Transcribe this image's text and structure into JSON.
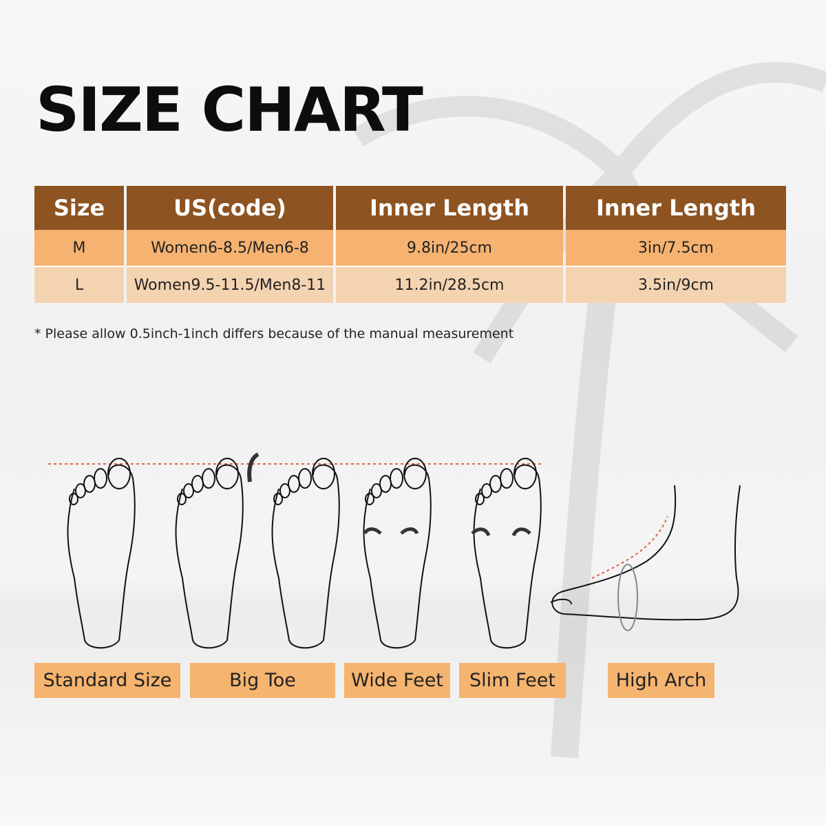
{
  "title": "SIZE CHART",
  "table": {
    "headers": [
      "Size",
      "US(code)",
      "Inner Length",
      "Inner Length"
    ],
    "rows": [
      [
        "M",
        "Women6-8.5/Men6-8",
        "9.8in/25cm",
        "3in/7.5cm"
      ],
      [
        "L",
        "Women9.5-11.5/Men8-11",
        "11.2in/28.5cm",
        "3.5in/9cm"
      ]
    ]
  },
  "note": "* Please allow 0.5inch-1inch differs because of the manual measurement",
  "foot_types": [
    "Standard Size",
    "Big Toe",
    "Wide Feet",
    "Slim Feet",
    "High Arch"
  ],
  "colors": {
    "header": "#8d5321",
    "row_m": "#f5b270",
    "row_l": "#f4d3b1",
    "label": "#f5b46f",
    "guide_line": "#e0604a"
  }
}
